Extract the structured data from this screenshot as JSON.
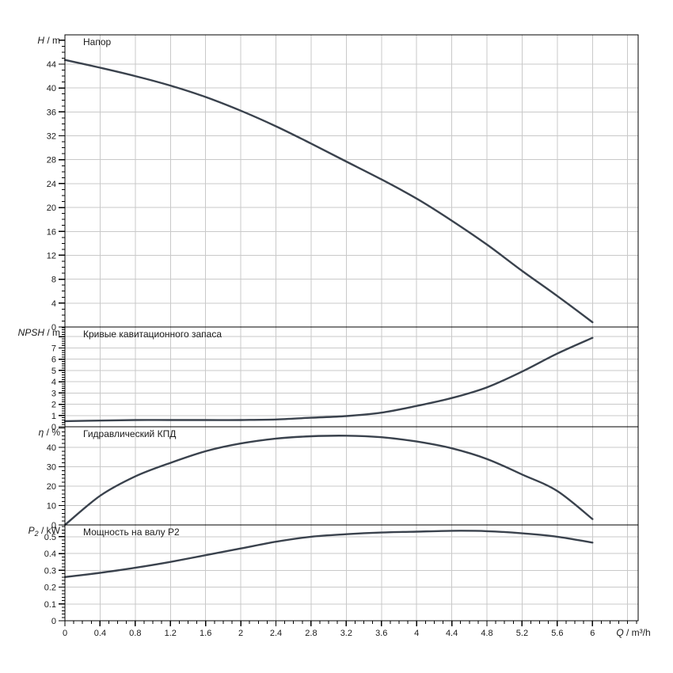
{
  "colors": {
    "curve": "#3a424d",
    "grid": "#c9c9c9",
    "axis": "#000000",
    "text": "#1a1a1a",
    "background": "#ffffff"
  },
  "x_axis": {
    "label_var": "Q",
    "label_unit": "m³/h",
    "min": 0,
    "max": 6.52,
    "major_step": 0.4,
    "minor_step": 0.1,
    "label_max": 6,
    "grid_step": 0.4
  },
  "chart_data": [
    {
      "type": "line",
      "id": "head",
      "title": "Напор",
      "axis_var": "H",
      "axis_sub": "",
      "axis_unit": "m",
      "ylim": [
        0,
        48.9
      ],
      "major_step": 4,
      "minor_step": 1,
      "label_max": 44,
      "x": [
        0,
        0.4,
        0.8,
        1.2,
        1.6,
        2,
        2.4,
        2.8,
        3.2,
        3.6,
        4,
        4.4,
        4.8,
        5.2,
        5.6,
        6
      ],
      "y": [
        44.7,
        43.4,
        42.0,
        40.4,
        38.5,
        36.2,
        33.6,
        30.7,
        27.7,
        24.7,
        21.5,
        17.8,
        13.8,
        9.4,
        5.2,
        0.8
      ]
    },
    {
      "type": "line",
      "id": "npsh",
      "title": "Кривые кавитационного запаса",
      "axis_var": "NPSH",
      "axis_sub": "",
      "axis_unit": "m",
      "ylim": [
        0,
        8.86
      ],
      "major_step": 1,
      "minor_step": 0.2,
      "label_max": 7,
      "x": [
        0,
        0.4,
        0.8,
        1.2,
        1.6,
        2,
        2.4,
        2.8,
        3.2,
        3.6,
        4,
        4.4,
        4.8,
        5.2,
        5.6,
        6
      ],
      "y": [
        0.5,
        0.55,
        0.6,
        0.6,
        0.6,
        0.6,
        0.65,
        0.8,
        0.95,
        1.25,
        1.85,
        2.55,
        3.5,
        4.9,
        6.5,
        7.9
      ]
    },
    {
      "type": "line",
      "id": "efficiency",
      "title": "Гидравлический КПД",
      "axis_var": "η",
      "axis_sub": "",
      "axis_unit": "%",
      "ylim": [
        0,
        50.6
      ],
      "major_step": 10,
      "minor_step": 2,
      "label_max": 40,
      "x": [
        0,
        0.4,
        0.8,
        1.2,
        1.6,
        2,
        2.4,
        2.8,
        3.2,
        3.6,
        4,
        4.4,
        4.8,
        5.2,
        5.6,
        6
      ],
      "y": [
        0,
        15,
        25,
        32,
        38,
        42,
        44.5,
        45.7,
        46,
        45.2,
        43,
        39.5,
        34,
        26,
        17.5,
        3
      ]
    },
    {
      "type": "line",
      "id": "power-p2",
      "title": "Мощность на валу P2",
      "axis_var": "P",
      "axis_sub": "2",
      "axis_unit": "kW",
      "ylim": [
        0,
        0.57
      ],
      "major_step": 0.1,
      "minor_step": 0.02,
      "label_max": 0.5,
      "x": [
        0,
        0.4,
        0.8,
        1.2,
        1.6,
        2,
        2.4,
        2.8,
        3.2,
        3.6,
        4,
        4.4,
        4.8,
        5.2,
        5.6,
        6
      ],
      "y": [
        0.26,
        0.285,
        0.315,
        0.35,
        0.39,
        0.43,
        0.47,
        0.5,
        0.515,
        0.525,
        0.53,
        0.535,
        0.533,
        0.52,
        0.5,
        0.465
      ]
    }
  ]
}
